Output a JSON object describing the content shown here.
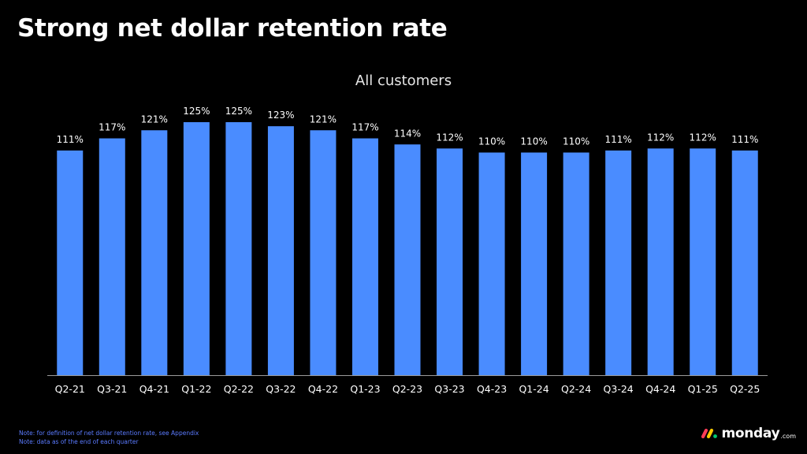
{
  "page": {
    "title": "Strong net dollar retention rate",
    "notes": [
      "Note: for definition of net dollar retention rate, see Appendix",
      "Note: data as of the end of each quarter"
    ],
    "logo": {
      "icon": "monday-logo-icon",
      "text": "monday",
      "suffix": ".com",
      "colors": [
        "#ff3d57",
        "#ffcb00",
        "#00ca72"
      ]
    }
  },
  "chart_data": {
    "type": "bar",
    "title": "All customers",
    "categories": [
      "Q2-21",
      "Q3-21",
      "Q4-21",
      "Q1-22",
      "Q2-22",
      "Q3-22",
      "Q4-22",
      "Q1-23",
      "Q2-23",
      "Q3-23",
      "Q4-23",
      "Q1-24",
      "Q2-24",
      "Q3-24",
      "Q4-24",
      "Q1-25",
      "Q2-25"
    ],
    "values": [
      111,
      117,
      121,
      125,
      125,
      123,
      121,
      117,
      114,
      112,
      110,
      110,
      110,
      111,
      112,
      112,
      111
    ],
    "data_labels": [
      "111%",
      "117%",
      "121%",
      "125%",
      "125%",
      "123%",
      "121%",
      "117%",
      "114%",
      "112%",
      "110%",
      "110%",
      "110%",
      "111%",
      "112%",
      "112%",
      "111%"
    ],
    "ylim": [
      0,
      125
    ],
    "grid": false,
    "legend": "none",
    "bar_color": "#4a8cff",
    "axis_color": "#9a9a9a"
  }
}
